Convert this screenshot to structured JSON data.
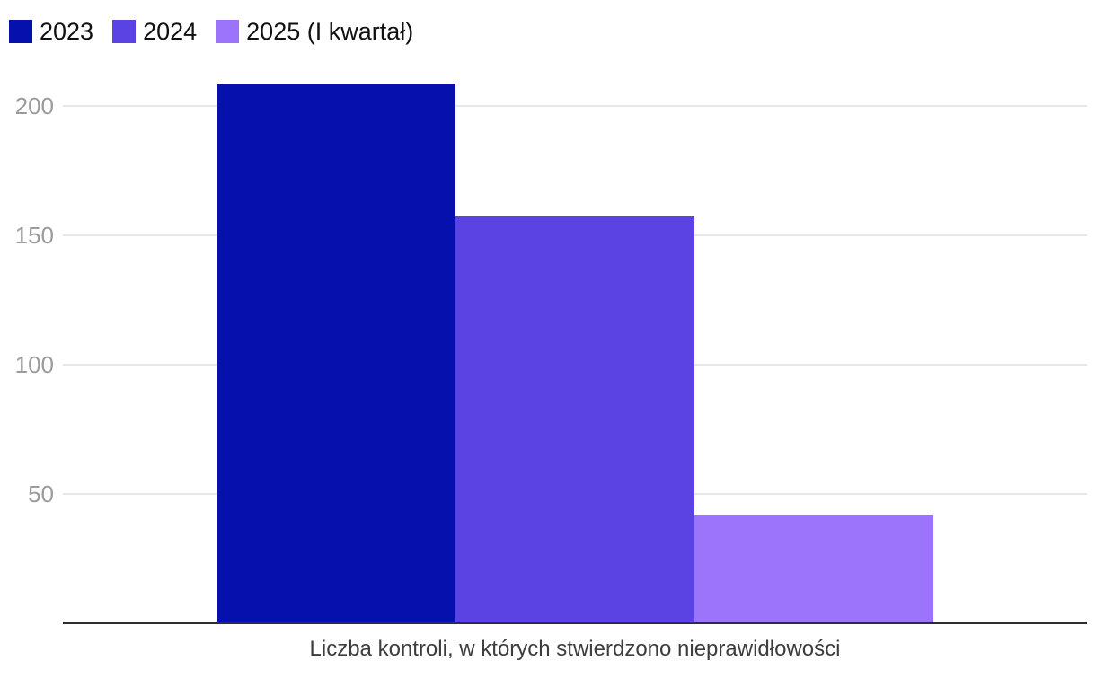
{
  "chart_data": {
    "type": "bar",
    "title": "",
    "xlabel": "Liczba kontroli, w których stwierdzono nieprawidłowości",
    "ylabel": "",
    "categories": [
      "2023",
      "2024",
      "2025 (I kwartał)"
    ],
    "values": [
      208,
      157,
      42
    ],
    "colors": [
      "#0610AD",
      "#5B42E3",
      "#9B74FB"
    ],
    "yticks": [
      50,
      100,
      150,
      200
    ],
    "ylim": [
      0,
      215
    ],
    "grid": true,
    "legend_position": "top-left",
    "legend_entries": [
      "2023",
      "2024",
      "2025 (I kwartał)"
    ],
    "colors_meta": {
      "grid_color": "#e7e7e7",
      "axis_line_color": "#2e2e2e",
      "tick_label_color": "#9b9b9b",
      "xlabel_color": "#3d3d3d",
      "legend_text_color": "#111111",
      "background": "#ffffff"
    }
  }
}
